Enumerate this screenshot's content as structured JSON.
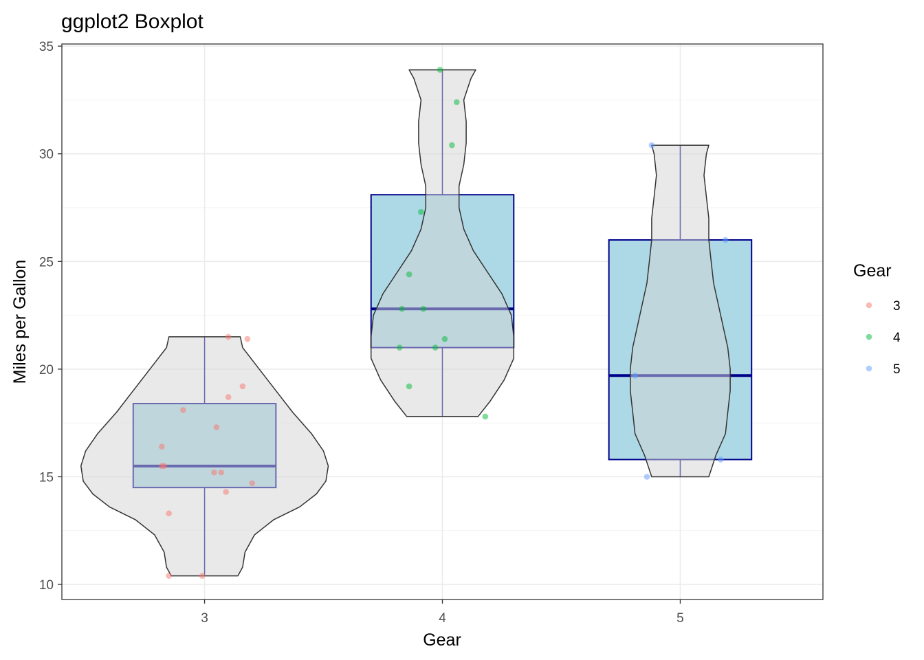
{
  "chart_data": {
    "type": "boxplot",
    "title": "ggplot2 Boxplot",
    "xlabel": "Gear",
    "ylabel": "Miles per Gallon",
    "categories": [
      "3",
      "4",
      "5"
    ],
    "ylim": [
      9.3,
      35.1
    ],
    "yticks": [
      10,
      15,
      20,
      25,
      30,
      35
    ],
    "grid": true,
    "legend": {
      "title": "Gear",
      "position": "right",
      "labels": [
        "3",
        "4",
        "5"
      ]
    },
    "colors": {
      "3": "#F8766D",
      "4": "#00BA38",
      "5": "#619CFF"
    },
    "series": [
      {
        "category": "3",
        "box": {
          "lower": 14.5,
          "median": 15.5,
          "upper": 18.4
        },
        "whisker": [
          10.4,
          21.5
        ],
        "points": [
          [
            -0.15,
            10.4
          ],
          [
            -0.01,
            10.4
          ],
          [
            -0.15,
            13.3
          ],
          [
            0.09,
            14.3
          ],
          [
            0.2,
            14.7
          ],
          [
            0.07,
            15.2
          ],
          [
            0.04,
            15.2
          ],
          [
            -0.17,
            15.5
          ],
          [
            -0.18,
            15.5
          ],
          [
            -0.18,
            16.4
          ],
          [
            0.05,
            17.3
          ],
          [
            -0.09,
            18.1
          ],
          [
            0.1,
            18.7
          ],
          [
            0.16,
            19.2
          ],
          [
            0.18,
            21.4
          ],
          [
            0.1,
            21.5
          ]
        ],
        "violin": [
          [
            10.4,
            0.14
          ],
          [
            10.8,
            0.16
          ],
          [
            11.5,
            0.17
          ],
          [
            12.3,
            0.21
          ],
          [
            13.0,
            0.29
          ],
          [
            13.6,
            0.4
          ],
          [
            14.2,
            0.47
          ],
          [
            14.8,
            0.51
          ],
          [
            15.5,
            0.52
          ],
          [
            16.2,
            0.5
          ],
          [
            17.0,
            0.45
          ],
          [
            18.0,
            0.37
          ],
          [
            19.0,
            0.3
          ],
          [
            20.0,
            0.23
          ],
          [
            21.0,
            0.16
          ],
          [
            21.5,
            0.15
          ]
        ]
      },
      {
        "category": "4",
        "box": {
          "lower": 21.0,
          "median": 22.8,
          "upper": 28.1
        },
        "whisker": [
          17.8,
          33.9
        ],
        "points": [
          [
            -0.01,
            33.9
          ],
          [
            0.06,
            32.4
          ],
          [
            0.04,
            30.4
          ],
          [
            -0.09,
            27.3
          ],
          [
            -0.14,
            24.4
          ],
          [
            -0.17,
            22.8
          ],
          [
            -0.08,
            22.8
          ],
          [
            0.01,
            21.4
          ],
          [
            -0.03,
            21.0
          ],
          [
            -0.18,
            21.0
          ],
          [
            -0.14,
            19.2
          ],
          [
            0.18,
            17.8
          ]
        ],
        "violin": [
          [
            17.8,
            0.15
          ],
          [
            18.5,
            0.2
          ],
          [
            19.5,
            0.26
          ],
          [
            20.5,
            0.3
          ],
          [
            21.5,
            0.3
          ],
          [
            22.5,
            0.29
          ],
          [
            23.5,
            0.25
          ],
          [
            24.5,
            0.19
          ],
          [
            25.5,
            0.13
          ],
          [
            26.5,
            0.09
          ],
          [
            27.5,
            0.07
          ],
          [
            28.5,
            0.07
          ],
          [
            29.5,
            0.09
          ],
          [
            30.5,
            0.1
          ],
          [
            31.5,
            0.1
          ],
          [
            32.5,
            0.09
          ],
          [
            33.5,
            0.12
          ],
          [
            33.9,
            0.14
          ]
        ]
      },
      {
        "category": "5",
        "box": {
          "lower": 15.8,
          "median": 19.7,
          "upper": 26.0
        },
        "whisker": [
          15.0,
          30.4
        ],
        "points": [
          [
            -0.12,
            30.4
          ],
          [
            0.19,
            26.0
          ],
          [
            -0.19,
            19.7
          ],
          [
            0.17,
            15.8
          ],
          [
            -0.14,
            15.0
          ]
        ],
        "violin": [
          [
            15.0,
            0.12
          ],
          [
            16.0,
            0.15
          ],
          [
            17.0,
            0.19
          ],
          [
            18.0,
            0.2
          ],
          [
            19.0,
            0.21
          ],
          [
            20.0,
            0.21
          ],
          [
            21.0,
            0.2
          ],
          [
            22.0,
            0.18
          ],
          [
            23.0,
            0.16
          ],
          [
            24.0,
            0.14
          ],
          [
            25.0,
            0.13
          ],
          [
            26.0,
            0.12
          ],
          [
            27.0,
            0.12
          ],
          [
            28.0,
            0.11
          ],
          [
            29.0,
            0.1
          ],
          [
            30.0,
            0.11
          ],
          [
            30.4,
            0.12
          ]
        ]
      }
    ]
  }
}
